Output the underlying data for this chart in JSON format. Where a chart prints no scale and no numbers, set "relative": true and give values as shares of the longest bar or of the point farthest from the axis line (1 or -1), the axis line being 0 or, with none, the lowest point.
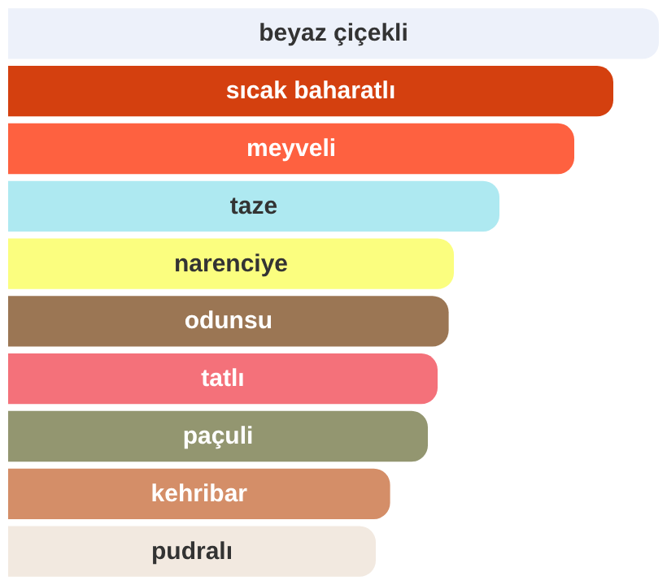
{
  "chart_data": {
    "type": "bar",
    "orientation": "horizontal",
    "relative": true,
    "data_labels": false,
    "categories": [
      "beyaz çiçekli",
      "sıcak baharatlı",
      "meyveli",
      "taze",
      "narenciye",
      "odunsu",
      "tatlı",
      "paçuli",
      "kehribar",
      "pudralı"
    ],
    "values": [
      1,
      0.93,
      0.87,
      0.755,
      0.685,
      0.677,
      0.66,
      0.645,
      0.587,
      0.565
    ],
    "colors": [
      "#edf1fa",
      "#d4400f",
      "#fe6140",
      "#aee9f1",
      "#fbfe7f",
      "#9b7654",
      "#f4717a",
      "#939670",
      "#d48e68",
      "#f2e9e0"
    ]
  }
}
